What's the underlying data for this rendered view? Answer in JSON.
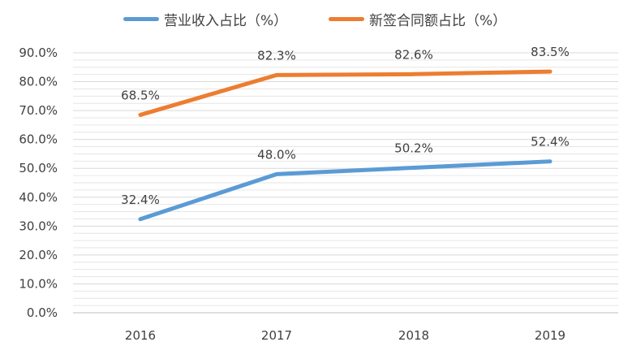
{
  "chart_data": {
    "type": "line",
    "categories": [
      "2016",
      "2017",
      "2018",
      "2019"
    ],
    "series": [
      {
        "name": "营业收入占比（%）",
        "color": "#5B9BD5",
        "values": [
          32.4,
          48.0,
          50.2,
          52.4
        ],
        "labels": [
          "32.4%",
          "48.0%",
          "50.2%",
          "52.4%"
        ]
      },
      {
        "name": "新签合同额占比（%）",
        "color": "#ED7D31",
        "values": [
          68.5,
          82.3,
          82.6,
          83.5
        ],
        "labels": [
          "68.5%",
          "82.3%",
          "82.6%",
          "83.5%"
        ]
      }
    ],
    "y_ticks": [
      "0.0%",
      "10.0%",
      "20.0%",
      "30.0%",
      "40.0%",
      "50.0%",
      "60.0%",
      "70.0%",
      "80.0%",
      "90.0%"
    ],
    "ylim": [
      0,
      90
    ],
    "grid": true,
    "legend_position": "top"
  }
}
